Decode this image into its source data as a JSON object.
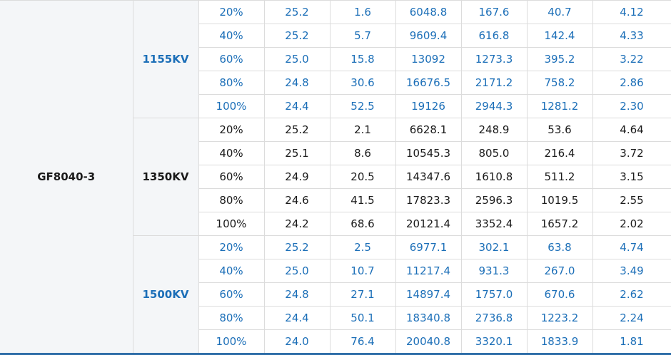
{
  "model": "GF8040-3",
  "groups": [
    {
      "kv": "1155KV",
      "style": "blue",
      "rows": [
        [
          "20%",
          "25.2",
          "1.6",
          "6048.8",
          "167.6",
          "40.7",
          "4.12"
        ],
        [
          "40%",
          "25.2",
          "5.7",
          "9609.4",
          "616.8",
          "142.4",
          "4.33"
        ],
        [
          "60%",
          "25.0",
          "15.8",
          "13092",
          "1273.3",
          "395.2",
          "3.22"
        ],
        [
          "80%",
          "24.8",
          "30.6",
          "16676.5",
          "2171.2",
          "758.2",
          "2.86"
        ],
        [
          "100%",
          "24.4",
          "52.5",
          "19126",
          "2944.3",
          "1281.2",
          "2.30"
        ]
      ]
    },
    {
      "kv": "1350KV",
      "style": "dark",
      "rows": [
        [
          "20%",
          "25.2",
          "2.1",
          "6628.1",
          "248.9",
          "53.6",
          "4.64"
        ],
        [
          "40%",
          "25.1",
          "8.6",
          "10545.3",
          "805.0",
          "216.4",
          "3.72"
        ],
        [
          "60%",
          "24.9",
          "20.5",
          "14347.6",
          "1610.8",
          "511.2",
          "3.15"
        ],
        [
          "80%",
          "24.6",
          "41.5",
          "17823.3",
          "2596.3",
          "1019.5",
          "2.55"
        ],
        [
          "100%",
          "24.2",
          "68.6",
          "20121.4",
          "3352.4",
          "1657.2",
          "2.02"
        ]
      ]
    },
    {
      "kv": "1500KV",
      "style": "blue",
      "rows": [
        [
          "20%",
          "25.2",
          "2.5",
          "6977.1",
          "302.1",
          "63.8",
          "4.74"
        ],
        [
          "40%",
          "25.0",
          "10.7",
          "11217.4",
          "931.3",
          "267.0",
          "3.49"
        ],
        [
          "60%",
          "24.8",
          "27.1",
          "14897.4",
          "1757.0",
          "670.6",
          "2.62"
        ],
        [
          "80%",
          "24.4",
          "50.1",
          "18340.8",
          "2736.8",
          "1223.2",
          "2.24"
        ],
        [
          "100%",
          "24.0",
          "76.4",
          "20040.8",
          "3320.1",
          "1833.9",
          "1.81"
        ]
      ]
    }
  ],
  "colors": {
    "blue_text": "#1c6fb8",
    "dark_text": "#1a1a1a",
    "label_bg": "#f4f6f8",
    "border": "#dcdcdc"
  }
}
